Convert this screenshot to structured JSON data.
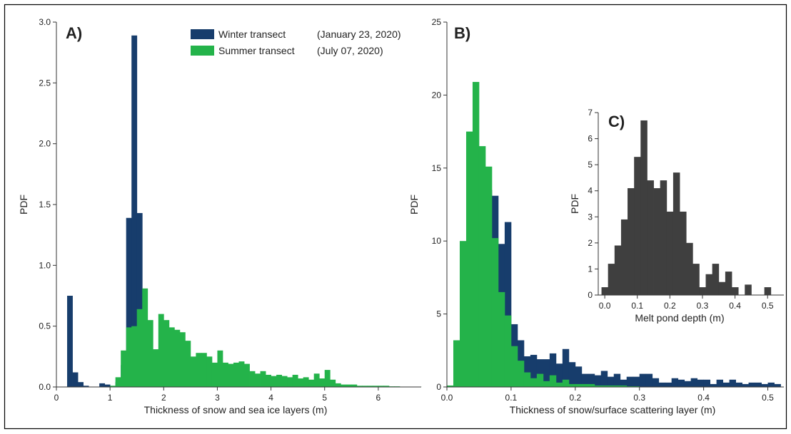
{
  "colors": {
    "winter": "#173d6c",
    "summer": "#24b34a",
    "pond": "#3f3f3f",
    "axis": "#333333",
    "border": "#000000"
  },
  "chart_data": [
    {
      "type": "bar",
      "panel": "A)",
      "xlabel": "Thickness of snow and sea ice layers (m)",
      "ylabel": "PDF",
      "xlim": [
        0,
        6.8
      ],
      "ylim": [
        0,
        3.0
      ],
      "xticks": [
        0,
        1,
        2,
        3,
        4,
        5,
        6
      ],
      "yticks": [
        0.0,
        0.5,
        1.0,
        1.5,
        2.0,
        2.5,
        3.0
      ],
      "ytick_labels": [
        "0.0",
        "0.5",
        "1.0",
        "1.5",
        "2.0",
        "2.5",
        "3.0"
      ],
      "bin_width": 0.1,
      "legend": {
        "placement": "top-center",
        "entries": [
          {
            "name": "Winter transect",
            "date": "(January 23, 2020)",
            "color": "#173d6c"
          },
          {
            "name": "Summer transect",
            "date": "(July 07, 2020)",
            "color": "#24b34a"
          }
        ]
      },
      "series": [
        {
          "name": "Winter transect",
          "color": "#173d6c",
          "bin_start": 0.2,
          "values": [
            0.75,
            0.12,
            0.04,
            0.01,
            0,
            0,
            0.03,
            0.02,
            0,
            0.04,
            0.18,
            1.39,
            2.89,
            1.43,
            0.4,
            0.15,
            0.06,
            0.03,
            0.02,
            0.01
          ]
        },
        {
          "name": "Summer transect",
          "color": "#24b34a",
          "bin_start": 1.0,
          "values": [
            0.01,
            0.08,
            0.3,
            0.49,
            0.5,
            0.64,
            0.81,
            0.55,
            0.31,
            0.6,
            0.55,
            0.49,
            0.47,
            0.45,
            0.38,
            0.25,
            0.28,
            0.28,
            0.25,
            0.2,
            0.3,
            0.2,
            0.19,
            0.2,
            0.21,
            0.19,
            0.13,
            0.11,
            0.13,
            0.1,
            0.09,
            0.1,
            0.09,
            0.08,
            0.1,
            0.07,
            0.08,
            0.06,
            0.11,
            0.07,
            0.14,
            0.06,
            0.03,
            0.02,
            0.02,
            0.02,
            0.01,
            0.01,
            0.01,
            0.01,
            0.01,
            0.01,
            0.005,
            0.005,
            0.003,
            0.003,
            0.002,
            0.002
          ]
        }
      ]
    },
    {
      "type": "bar",
      "panel": "B)",
      "xlabel": "Thickness of snow/surface scattering layer (m)",
      "ylabel": "PDF",
      "xlim": [
        0,
        0.525
      ],
      "ylim": [
        0,
        25
      ],
      "xticks": [
        0.0,
        0.1,
        0.2,
        0.3,
        0.4,
        0.5
      ],
      "xtick_labels": [
        "0.0",
        "0.1",
        "0.2",
        "0.3",
        "0.4",
        "0.5"
      ],
      "yticks": [
        0,
        5,
        10,
        15,
        20,
        25
      ],
      "bin_width": 0.01,
      "series": [
        {
          "name": "Winter transect",
          "color": "#173d6c",
          "bin_start": 0.0,
          "values": [
            0,
            0,
            0,
            0.2,
            5.6,
            10.5,
            13.5,
            13.1,
            9.8,
            11.3,
            4.3,
            3.2,
            2.1,
            2.2,
            1.9,
            1.9,
            2.3,
            1.6,
            2.6,
            1.7,
            1.4,
            0.9,
            0.9,
            0.8,
            1.1,
            0.7,
            0.9,
            0.5,
            0.7,
            0.7,
            0.9,
            0.9,
            0.6,
            0.3,
            0.3,
            0.6,
            0.5,
            0.4,
            0.6,
            0.5,
            0.5,
            0.2,
            0.5,
            0.3,
            0.5,
            0.3,
            0.2,
            0.3,
            0.3,
            0.2,
            0.3,
            0.2
          ]
        },
        {
          "name": "Summer transect",
          "color": "#24b34a",
          "bin_start": 0.0,
          "values": [
            0.1,
            3.2,
            10.0,
            17.5,
            20.9,
            16.5,
            15.1,
            10.2,
            6.5,
            4.9,
            2.8,
            1.8,
            1.0,
            0.6,
            0.9,
            0.4,
            0.8,
            0.3,
            0.5,
            0.2,
            0.2,
            0.2,
            0.2,
            0.1,
            0.1,
            0.1,
            0.1,
            0.1,
            0.05,
            0.05
          ]
        }
      ]
    },
    {
      "type": "bar",
      "panel": "C)",
      "xlabel": "Melt pond depth (m)",
      "ylabel": "PDF",
      "xlim": [
        -0.02,
        0.55
      ],
      "ylim": [
        0,
        7
      ],
      "xticks": [
        0.0,
        0.1,
        0.2,
        0.3,
        0.4,
        0.5
      ],
      "xtick_labels": [
        "0.0",
        "0.1",
        "0.2",
        "0.3",
        "0.4",
        "0.5"
      ],
      "yticks": [
        0,
        1,
        2,
        3,
        4,
        5,
        6,
        7
      ],
      "bin_width": 0.02,
      "series": [
        {
          "name": "Melt pond depth",
          "color": "#3f3f3f",
          "bin_start": -0.01,
          "values": [
            0.3,
            1.2,
            1.9,
            2.9,
            4.1,
            5.3,
            6.7,
            4.4,
            4.1,
            4.4,
            3.2,
            4.7,
            3.2,
            2.0,
            1.2,
            0.3,
            0.8,
            1.2,
            0.5,
            0.9,
            0.3,
            0.0,
            0.4,
            0.0,
            0.0,
            0.3
          ]
        }
      ]
    }
  ]
}
